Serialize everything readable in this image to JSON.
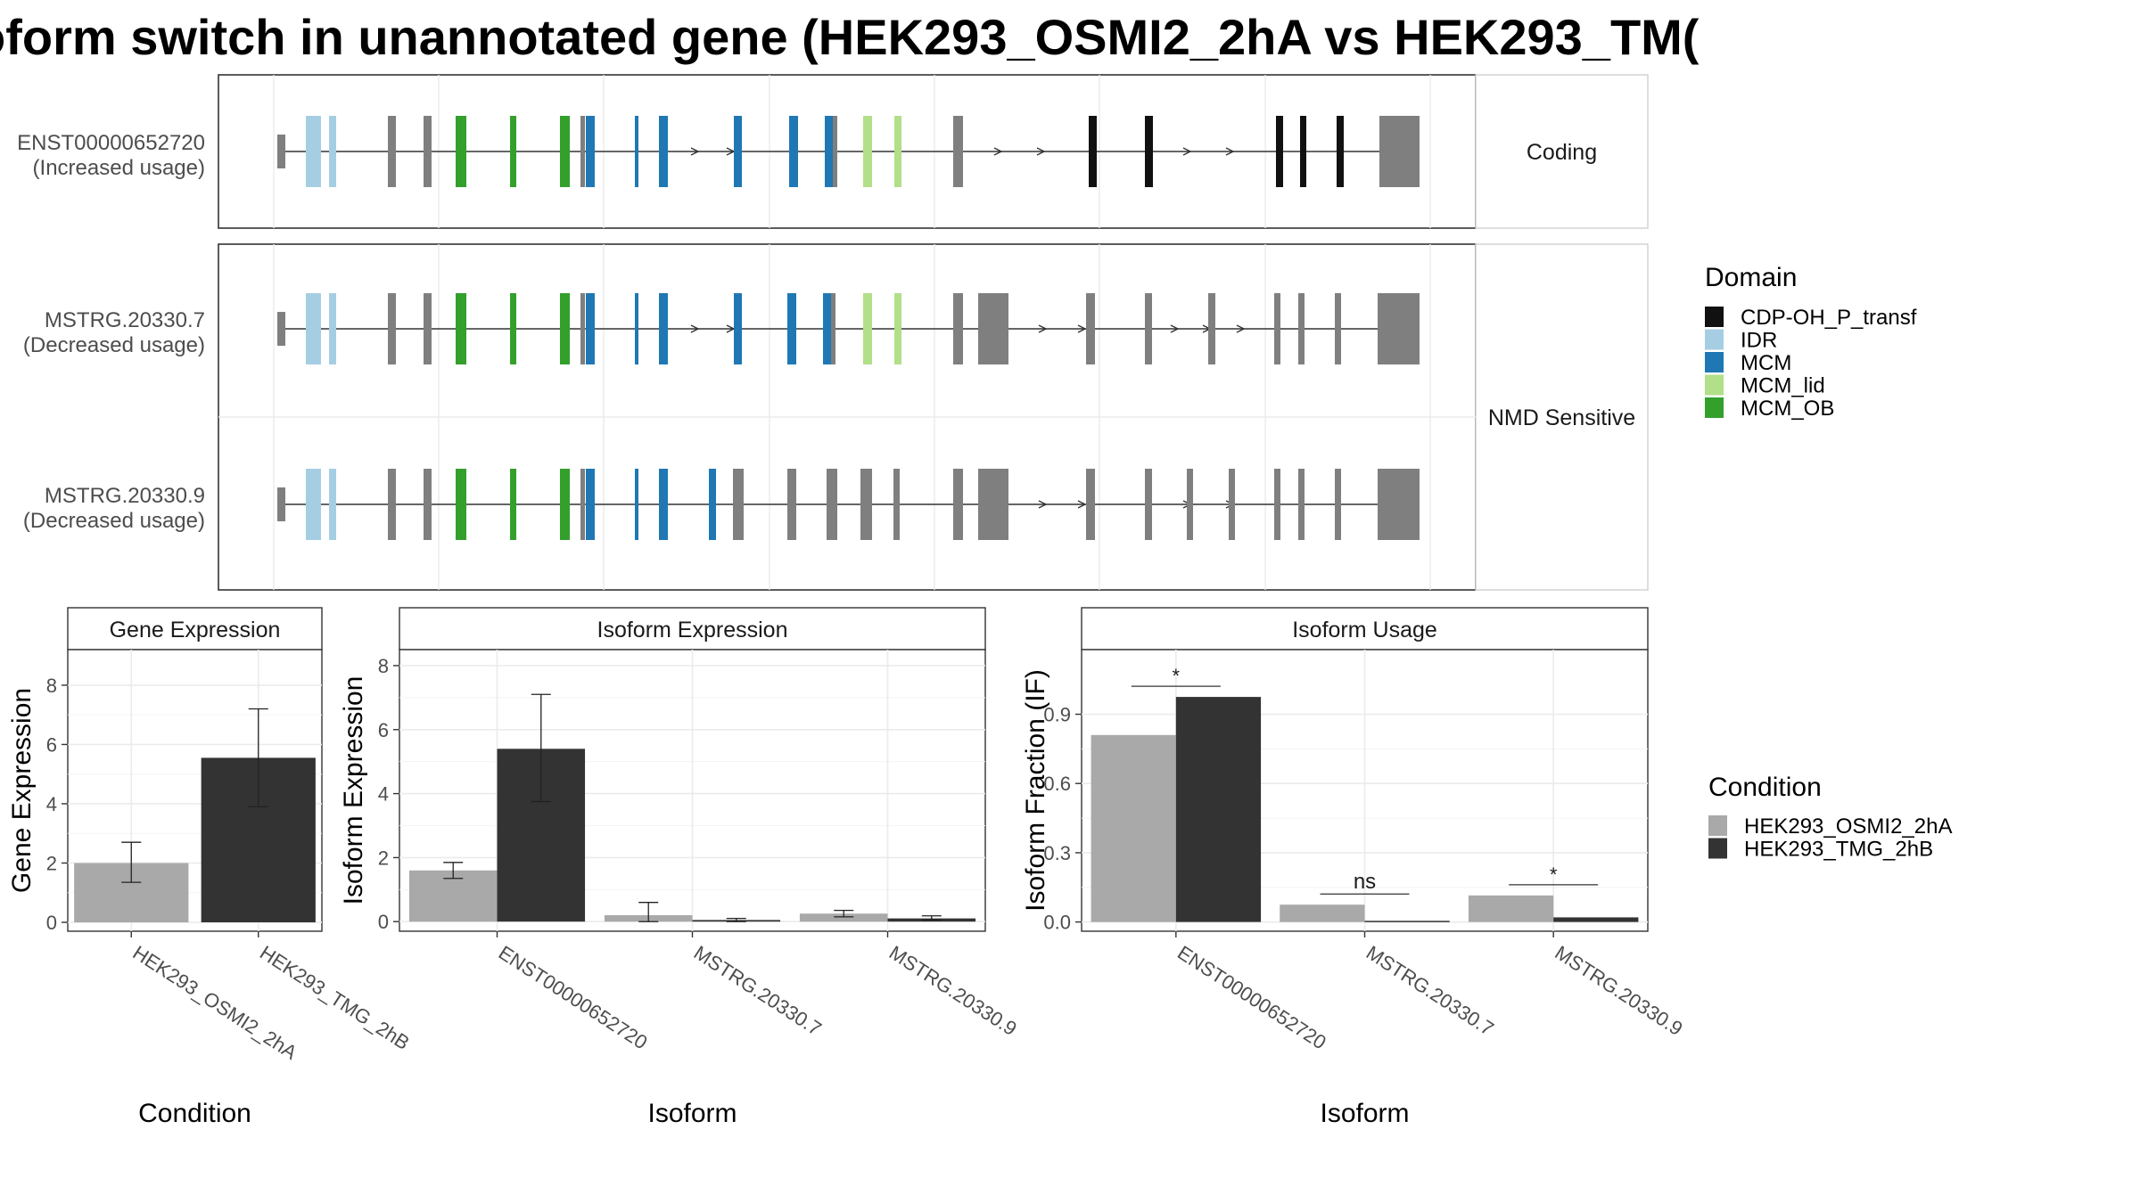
{
  "title": "oform switch in unannotated gene (HEK293_OSMI2_2hA vs HEK293_TM(",
  "colors": {
    "intron": "#000000",
    "exon_default": "#7f7f7f",
    "cond_a": "#a9a9a9",
    "cond_b": "#333333",
    "grid": "#ebebeb"
  },
  "domain_legend": {
    "title": "Domain",
    "items": [
      {
        "label": "CDP-OH_P_transf",
        "color": "#111111"
      },
      {
        "label": "IDR",
        "color": "#a6cee3"
      },
      {
        "label": "MCM",
        "color": "#1f78b4"
      },
      {
        "label": "MCM_lid",
        "color": "#b2df8a"
      },
      {
        "label": "MCM_OB",
        "color": "#33a02c"
      }
    ]
  },
  "condition_legend": {
    "title": "Condition",
    "items": [
      {
        "label": "HEK293_OSMI2_2hA",
        "color": "#a9a9a9"
      },
      {
        "label": "HEK293_TMG_2hB",
        "color": "#333333"
      }
    ]
  },
  "transcripts": [
    {
      "id": "ENST00000652720",
      "usage": "(Increased usage)",
      "group": "Coding"
    },
    {
      "id": "MSTRG.20330.7",
      "usage": "(Decreased usage)",
      "group": "NMD Sensitive"
    },
    {
      "id": "MSTRG.20330.9",
      "usage": "(Decreased usage)",
      "group": "NMD Sensitive"
    }
  ],
  "chart_data": [
    {
      "type": "bar",
      "title": "Gene Expression",
      "xlabel": "Condition",
      "ylabel": "Gene Expression",
      "categories": [
        "HEK293_OSMI2_2hA",
        "HEK293_TMG_2hB"
      ],
      "series": [
        {
          "values": [
            2.0,
            5.55
          ],
          "err_low": [
            1.35,
            3.9
          ],
          "err_high": [
            2.7,
            7.2
          ]
        }
      ],
      "ylim": [
        -0.3,
        9.2
      ],
      "yticks": [
        0,
        2,
        4,
        6,
        8
      ],
      "ytick_labels": [
        "0",
        "2",
        "4",
        "6",
        "8"
      ]
    },
    {
      "type": "bar",
      "title": "Isoform Expression",
      "xlabel": "Isoform",
      "ylabel": "Isoform Expression",
      "categories": [
        "ENST00000652720",
        "MSTRG.20330.7",
        "MSTRG.20330.9"
      ],
      "series": [
        {
          "name": "HEK293_OSMI2_2hA",
          "values": [
            1.6,
            0.2,
            0.25
          ],
          "err_low": [
            1.35,
            0.0,
            0.15
          ],
          "err_high": [
            1.85,
            0.6,
            0.35
          ]
        },
        {
          "name": "HEK293_TMG_2hB",
          "values": [
            5.4,
            0.05,
            0.1
          ],
          "err_low": [
            3.75,
            0.0,
            0.05
          ],
          "err_high": [
            7.1,
            0.1,
            0.18
          ]
        }
      ],
      "ylim": [
        -0.3,
        8.5
      ],
      "yticks": [
        0,
        2,
        4,
        6,
        8
      ],
      "ytick_labels": [
        "0",
        "2",
        "4",
        "6",
        "8"
      ]
    },
    {
      "type": "bar",
      "title": "Isoform Usage",
      "xlabel": "Isoform",
      "ylabel": "Isoform Fraction (IF)",
      "categories": [
        "ENST00000652720",
        "MSTRG.20330.7",
        "MSTRG.20330.9"
      ],
      "series": [
        {
          "name": "HEK293_OSMI2_2hA",
          "values": [
            0.81,
            0.075,
            0.115
          ]
        },
        {
          "name": "HEK293_TMG_2hB",
          "values": [
            0.975,
            0.005,
            0.02
          ]
        }
      ],
      "significance": [
        "*",
        "ns",
        "*"
      ],
      "ylim": [
        -0.04,
        1.18
      ],
      "yticks": [
        0,
        0.3,
        0.6,
        0.9
      ],
      "ytick_labels": [
        "0.0",
        "0.3",
        "0.6",
        "0.9"
      ]
    }
  ]
}
